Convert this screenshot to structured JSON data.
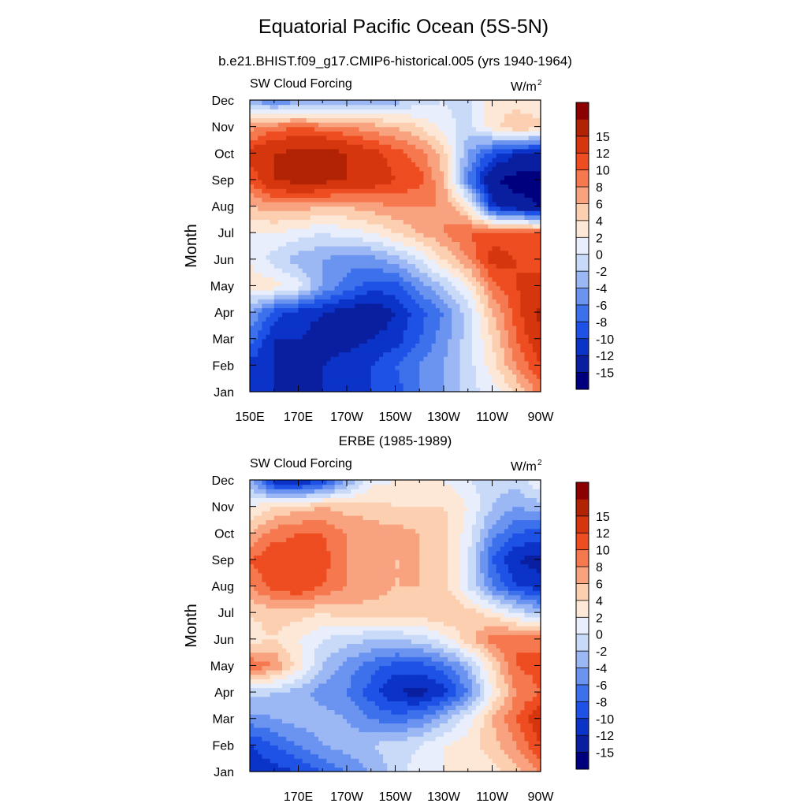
{
  "title": "Equatorial Pacific Ocean (5S-5N)",
  "colorbar": {
    "levels": [
      -15,
      -12,
      -10,
      -8,
      -6,
      -4,
      -2,
      0,
      2,
      4,
      6,
      8,
      10,
      12,
      15
    ],
    "colors": [
      "#00007f",
      "#0a1fa0",
      "#0b33c8",
      "#1e52e6",
      "#3d71ec",
      "#6b93f0",
      "#9cb8f4",
      "#c8daf8",
      "#e8eefb",
      "#fde8d8",
      "#fbcfb0",
      "#f8a27f",
      "#f5784f",
      "#ee4c21",
      "#d6360e",
      "#b22204",
      "#8b0000"
    ]
  },
  "chart_data": [
    {
      "type": "heatmap",
      "name": "model",
      "subtitle": "b.e21.BHIST.f09_g17.CMIP6-historical.005 (yrs 1940-1964)",
      "left_label": "SW Cloud Forcing",
      "units": "W/m",
      "units_sup": "2",
      "ylabel": "Month",
      "y_ticks": [
        "Jan",
        "Feb",
        "Mar",
        "Apr",
        "May",
        "Jun",
        "Jul",
        "Aug",
        "Sep",
        "Oct",
        "Nov",
        "Dec"
      ],
      "x_ticks": [
        "150E",
        "170E",
        "170W",
        "150W",
        "130W",
        "110W",
        "90W"
      ],
      "x_tick_lon": [
        150,
        170,
        190,
        210,
        230,
        250,
        270
      ],
      "xlim": [
        150,
        270
      ],
      "lon": [
        150,
        160,
        170,
        180,
        190,
        200,
        210,
        220,
        230,
        240,
        250,
        260,
        270
      ],
      "months": [
        1,
        2,
        3,
        4,
        5,
        6,
        7,
        8,
        9,
        10,
        11,
        12
      ],
      "z": [
        [
          -11,
          -12,
          -12,
          -12,
          -11,
          -10,
          -9,
          -6,
          -4,
          -1,
          1,
          4,
          9
        ],
        [
          -11,
          -12,
          -13,
          -12,
          -11,
          -10,
          -8,
          -6,
          -4,
          -1,
          3,
          8,
          12
        ],
        [
          -7,
          -12,
          -12,
          -13,
          -13,
          -12,
          -11,
          -8,
          -5,
          -1,
          4,
          10,
          14
        ],
        [
          -4,
          -9,
          -11,
          -12,
          -13,
          -14,
          -12,
          -9,
          -6,
          -1,
          6,
          11,
          16
        ],
        [
          3,
          3,
          1,
          -4,
          -7,
          -9,
          -9,
          -5,
          -2,
          2,
          9,
          12,
          13
        ],
        [
          2,
          -1,
          -3,
          -4,
          -5,
          -5,
          -3,
          0,
          4,
          8,
          13,
          12,
          11
        ],
        [
          2,
          2,
          1,
          0,
          1,
          2,
          4,
          6,
          8,
          10,
          11,
          11,
          10
        ],
        [
          6,
          7,
          7,
          6,
          6,
          7,
          8,
          8,
          8,
          3,
          -11,
          -14,
          -15
        ],
        [
          10,
          15,
          16,
          16,
          15,
          14,
          12,
          11,
          6,
          -6,
          -15,
          -16,
          -16
        ],
        [
          13,
          15,
          16,
          17,
          15,
          13,
          11,
          9,
          5,
          -4,
          -9,
          -12,
          -13
        ],
        [
          7,
          9,
          10,
          9,
          8,
          7,
          6,
          4,
          1,
          -1,
          3,
          6,
          5
        ],
        [
          -4,
          -6,
          -5,
          -5,
          -4,
          -4,
          -3,
          -1,
          0,
          -1,
          3,
          3,
          2
        ]
      ]
    },
    {
      "type": "heatmap",
      "name": "obs",
      "subtitle": "ERBE (1985-1989)",
      "left_label": "SW Cloud Forcing",
      "units": "W/m",
      "units_sup": "2",
      "ylabel": "Month",
      "y_ticks": [
        "Jan",
        "Feb",
        "Mar",
        "Apr",
        "May",
        "Jun",
        "Jul",
        "Aug",
        "Sep",
        "Oct",
        "Nov",
        "Dec"
      ],
      "x_ticks": [
        "170E",
        "170W",
        "150W",
        "130W",
        "110W",
        "90W"
      ],
      "x_tick_lon": [
        170,
        190,
        210,
        230,
        250,
        270
      ],
      "xlim": [
        150,
        270
      ],
      "lon": [
        150,
        160,
        170,
        180,
        190,
        200,
        210,
        220,
        230,
        240,
        250,
        260,
        270
      ],
      "months": [
        1,
        2,
        3,
        4,
        5,
        6,
        7,
        8,
        9,
        10,
        11,
        12
      ],
      "z": [
        [
          -12,
          -11,
          -10,
          -8,
          -6,
          -4,
          -1,
          1,
          2,
          2,
          3,
          5,
          8
        ],
        [
          -10,
          -8,
          -6,
          -4,
          -3,
          -2,
          -1,
          0,
          2,
          3,
          5,
          8,
          12
        ],
        [
          -5,
          -4,
          -3,
          -3,
          -4,
          -6,
          -7,
          -6,
          -3,
          1,
          6,
          10,
          14
        ],
        [
          -1,
          -2,
          -3,
          -5,
          -6,
          -9,
          -12,
          -13,
          -11,
          -6,
          2,
          8,
          10
        ],
        [
          10,
          8,
          3,
          -2,
          -5,
          -7,
          -9,
          -9,
          -7,
          -3,
          4,
          10,
          11
        ],
        [
          3,
          4,
          2,
          0,
          -1,
          -2,
          -2,
          -1,
          1,
          5,
          9,
          10,
          9
        ],
        [
          4,
          5,
          5,
          4,
          5,
          5,
          5,
          5,
          6,
          5,
          3,
          0,
          -3
        ],
        [
          8,
          11,
          12,
          10,
          8,
          7,
          6,
          6,
          5,
          0,
          -6,
          -10,
          -11
        ],
        [
          10,
          12,
          11,
          11,
          8,
          8,
          6,
          6,
          5,
          0,
          -8,
          -12,
          -13
        ],
        [
          6,
          9,
          10,
          10,
          8,
          7,
          7,
          6,
          5,
          1,
          -5,
          -8,
          -9
        ],
        [
          2,
          4,
          5,
          6,
          5,
          5,
          4,
          4,
          4,
          2,
          -2,
          -4,
          -3
        ],
        [
          -3,
          -12,
          -13,
          -10,
          -4,
          1,
          2,
          2,
          2,
          0,
          -1,
          -1,
          2
        ]
      ]
    }
  ]
}
